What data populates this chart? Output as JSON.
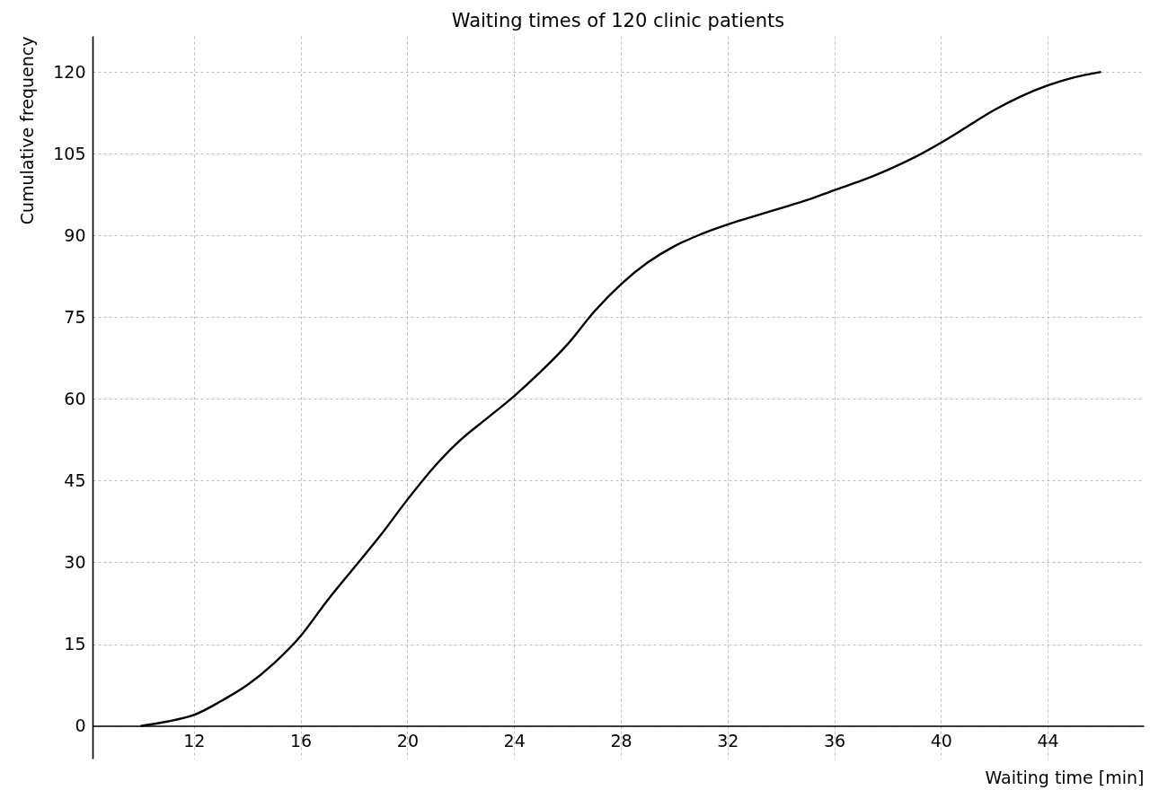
{
  "chart_data": {
    "type": "line",
    "title": "Waiting times of 120 clinic patients",
    "xlabel": "Waiting time [min]",
    "ylabel": "Cumulative frequency",
    "x": [
      10,
      11,
      12,
      13,
      14,
      15,
      16,
      17,
      18,
      19,
      20,
      21,
      22,
      23,
      24,
      25,
      26,
      27,
      28,
      29,
      30,
      31,
      32,
      33,
      34,
      35,
      36,
      37,
      38,
      39,
      40,
      41,
      42,
      43,
      44,
      45,
      46
    ],
    "series": [
      {
        "color": "#000000",
        "values": [
          0,
          0.8,
          2,
          4.5,
          7.5,
          11.5,
          16.5,
          23,
          29,
          35,
          41.5,
          47.5,
          52.5,
          56.5,
          60.5,
          65,
          70,
          76,
          81,
          85,
          88,
          90.2,
          92,
          93.5,
          95,
          96.5,
          98.3,
          100,
          102,
          104.3,
          107,
          110,
          113,
          115.5,
          117.5,
          119,
          120
        ]
      }
    ],
    "xlim": [
      8.2,
      47.6
    ],
    "ylim": [
      -6,
      126.6
    ],
    "xticks": [
      12,
      16,
      20,
      24,
      28,
      32,
      36,
      40,
      44
    ],
    "yticks": [
      0,
      15,
      30,
      45,
      60,
      75,
      90,
      105,
      120
    ],
    "grid": true,
    "marker": "none",
    "line_style": "solid"
  }
}
